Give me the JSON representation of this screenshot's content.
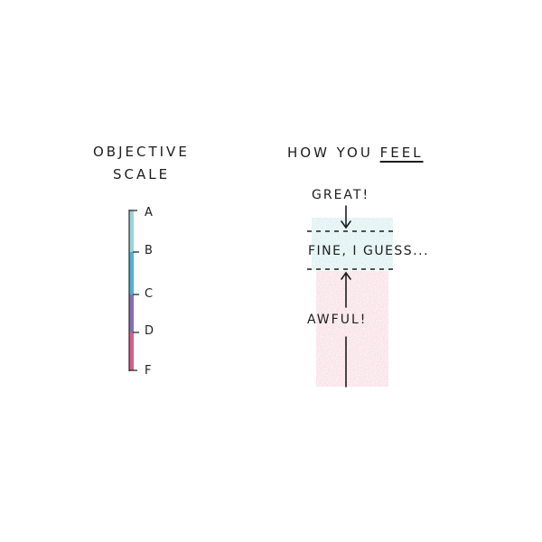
{
  "left_panel": {
    "title_line_1": "OBJECTIVE",
    "title_line_2": "SCALE",
    "grades": [
      "A",
      "B",
      "C",
      "D",
      "F"
    ],
    "bar_colors": [
      "#8fcfd6",
      "#3fa7c9",
      "#7b5ea7",
      "#cf4f7b"
    ]
  },
  "right_panel": {
    "title_prefix": "HOW YOU ",
    "title_emphasis": "FEEL",
    "label_top": "GREAT!",
    "label_middle": "FINE, I GUESS...",
    "label_bottom": "AWFUL!",
    "band_colors": {
      "upper": "#bfe3e6",
      "lower": "#f1bfcc"
    }
  }
}
